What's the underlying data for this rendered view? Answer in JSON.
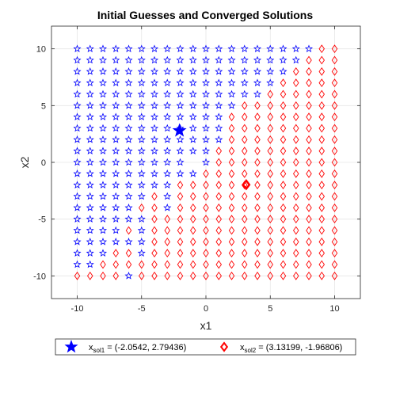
{
  "chart_data": {
    "type": "scatter",
    "title": "Initial Guesses and Converged Solutions",
    "xlabel": "x1",
    "ylabel": "x2",
    "xlim": [
      -12,
      12
    ],
    "ylim": [
      -12,
      12
    ],
    "xticks": [
      -10,
      -5,
      0,
      5,
      10
    ],
    "yticks": [
      -10,
      -5,
      0,
      5,
      10
    ],
    "grid": true,
    "legend_position": "bottom-outside",
    "grid_x": [
      -10,
      -9,
      -8,
      -7,
      -6,
      -5,
      -4,
      -3,
      -2,
      -1,
      0,
      1,
      2,
      3,
      4,
      5,
      6,
      7,
      8,
      9,
      10
    ],
    "grid_y": [
      10,
      9,
      8,
      7,
      6,
      5,
      4,
      3,
      2,
      1,
      0,
      -1,
      -2,
      -3,
      -4,
      -5,
      -6,
      -7,
      -8,
      -9,
      -10
    ],
    "grid_classes_note": "rows listed from y=10 down to y=-10; columns x=-10..10; 1 = converged to x_sol1 (blue star), 2 = converged to x_sol2 (red diamond), 0 = not shown",
    "grid_classes": [
      "111111111111111111122",
      "111111111111111111222",
      "111111111111111112222",
      "111111111111111122222",
      "111111111111111222222",
      "111111111111122222222",
      "111111111111222222222",
      "111111111111222222222",
      "111111111111222222222",
      "111111111112222222222",
      "111111111012222222222",
      "111111111122222222222",
      "111111112222222222222",
      "111111212222222222222",
      "111112212222222222222",
      "111111222222222222222",
      "111121222222222222222",
      "111111222222222222222",
      "111221222222222222222",
      "112222222222222222222",
      "222212222222222222222"
    ],
    "series": [
      {
        "name": "x_sol1 = (-2.0542, 2.79436)",
        "legend_main": "x",
        "legend_sub": "sol1",
        "legend_value": " = (-2.0542, 2.79436)",
        "marker": "star",
        "color": "#0000ff",
        "solution": [
          -2.0542,
          2.79436
        ]
      },
      {
        "name": "x_sol2 = (3.13199, -1.96806)",
        "legend_main": "x",
        "legend_sub": "sol2",
        "legend_value": " = (3.13199, -1.96806)",
        "marker": "diamond",
        "color": "#ff0000",
        "solution": [
          3.13199,
          -1.96806
        ]
      }
    ]
  }
}
